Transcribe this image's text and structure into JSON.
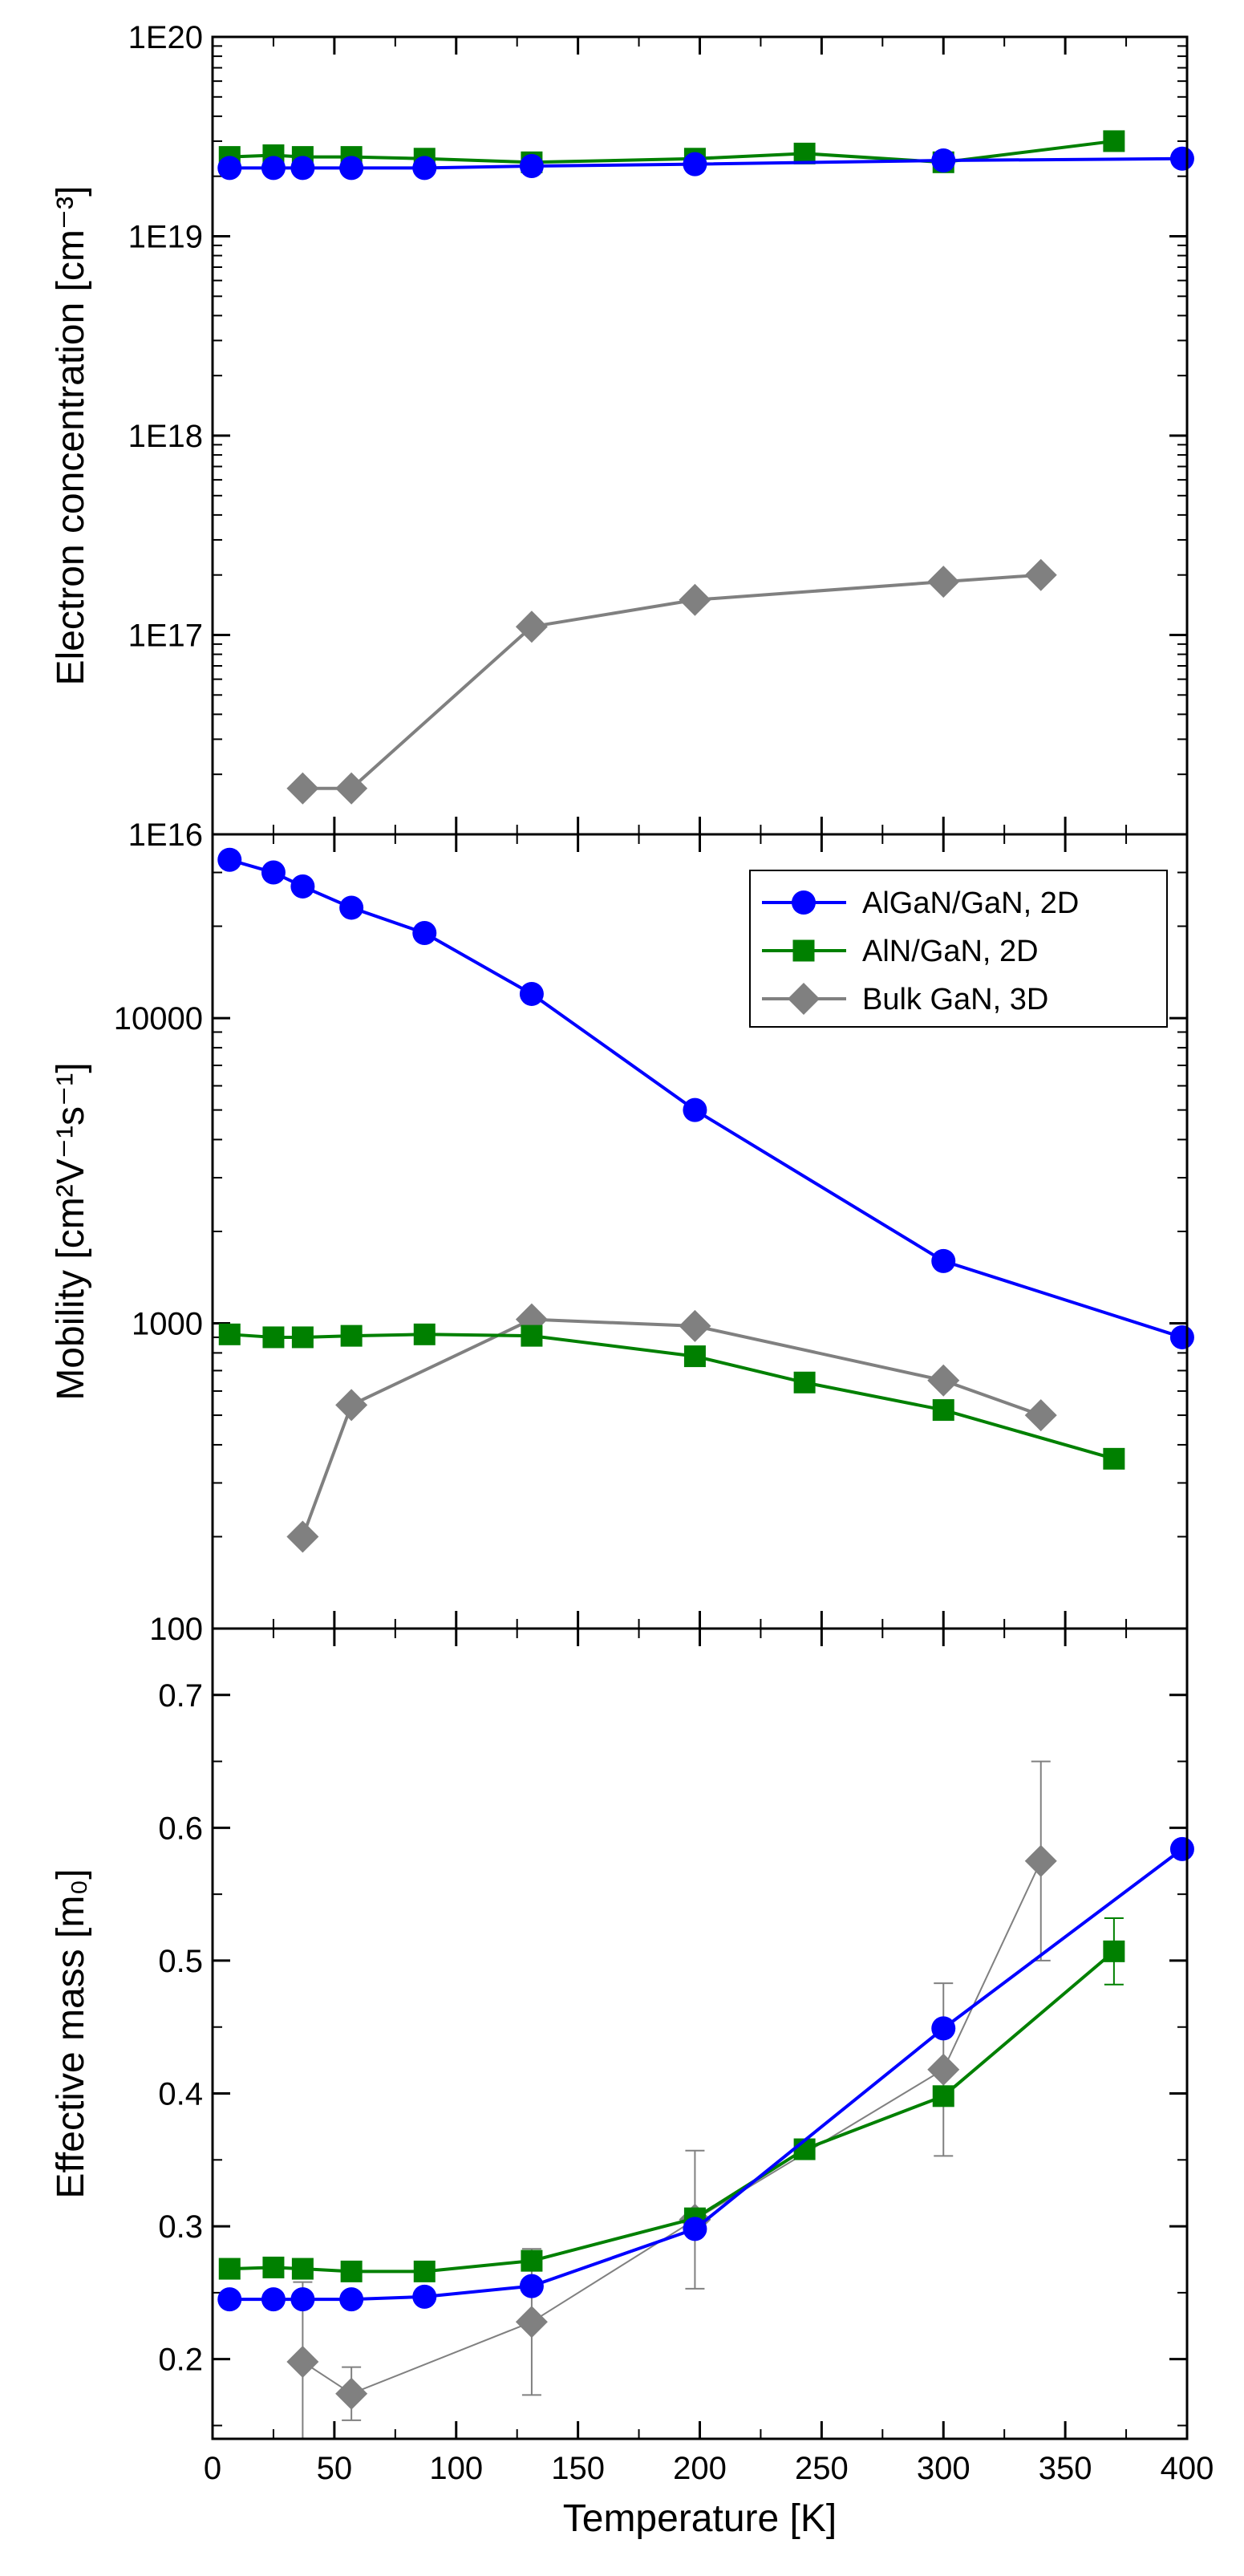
{
  "chart_data": [
    {
      "type": "line",
      "panel": "top",
      "ylabel": "Electron concentration  [cm⁻³]",
      "yscale": "log",
      "ylim": [
        1e+16,
        1e+20
      ],
      "xlim": [
        0,
        400
      ],
      "y_ticks": [
        1e+16,
        1e+17,
        1e+18,
        1e+19,
        1e+20
      ],
      "y_tick_labels": [
        "1E16",
        "1E17",
        "1E18",
        "1E19",
        "1E20"
      ],
      "series": [
        {
          "name": "AlGaN/GaN, 2D",
          "color": "#0000ff",
          "marker": "circle",
          "x": [
            7,
            25,
            37,
            57,
            87,
            131,
            198,
            300,
            398
          ],
          "y": [
            2.2e+19,
            2.2e+19,
            2.2e+19,
            2.2e+19,
            2.2e+19,
            2.25e+19,
            2.3e+19,
            2.4e+19,
            2.45e+19
          ]
        },
        {
          "name": "AlN/GaN, 2D",
          "color": "#008000",
          "marker": "square",
          "x": [
            7,
            25,
            37,
            57,
            87,
            131,
            198,
            243,
            300,
            370
          ],
          "y": [
            2.5e+19,
            2.55e+19,
            2.5e+19,
            2.5e+19,
            2.45e+19,
            2.35e+19,
            2.45e+19,
            2.6e+19,
            2.35e+19,
            3e+19
          ]
        },
        {
          "name": "Bulk GaN, 3D",
          "color": "#808080",
          "marker": "diamond",
          "x": [
            37,
            57,
            131,
            198,
            300,
            340
          ],
          "y": [
            1.7e+16,
            1.7e+16,
            1.1e+17,
            1.5e+17,
            1.85e+17,
            2e+17
          ]
        }
      ]
    },
    {
      "type": "line",
      "panel": "middle",
      "ylabel": "Mobility [cm²V⁻¹s⁻¹]",
      "yscale": "log",
      "ylim": [
        100,
        40000
      ],
      "xlim": [
        0,
        400
      ],
      "y_ticks": [
        100,
        1000,
        10000
      ],
      "y_tick_labels": [
        "100",
        "1000",
        "10000"
      ],
      "legend": {
        "location": "top-right",
        "entries": [
          "AlGaN/GaN, 2D",
          "AlN/GaN, 2D",
          "Bulk GaN, 3D"
        ]
      },
      "series": [
        {
          "name": "AlGaN/GaN, 2D",
          "color": "#0000ff",
          "marker": "circle",
          "x": [
            7,
            25,
            37,
            57,
            87,
            131,
            198,
            300,
            398
          ],
          "y": [
            33000,
            30000,
            27000,
            23000,
            19000,
            12000,
            5000,
            1600,
            900
          ]
        },
        {
          "name": "AlN/GaN, 2D",
          "color": "#008000",
          "marker": "square",
          "x": [
            7,
            25,
            37,
            57,
            87,
            131,
            198,
            243,
            300,
            370
          ],
          "y": [
            920,
            900,
            900,
            910,
            920,
            910,
            780,
            640,
            520,
            360
          ]
        },
        {
          "name": "Bulk GaN, 3D",
          "color": "#808080",
          "marker": "diamond",
          "x": [
            37,
            57,
            131,
            198,
            300,
            340
          ],
          "y": [
            200,
            540,
            1030,
            980,
            650,
            500
          ]
        }
      ]
    },
    {
      "type": "line",
      "panel": "bottom",
      "ylabel": "Effective mass [m₀]",
      "xlabel": "Temperature [K]",
      "yscale": "linear",
      "ylim": [
        0.14,
        0.75
      ],
      "xlim": [
        0,
        400
      ],
      "y_ticks": [
        0.2,
        0.3,
        0.4,
        0.5,
        0.6,
        0.7
      ],
      "y_tick_labels": [
        "0.2",
        "0.3",
        "0.4",
        "0.5",
        "0.6",
        "0.7"
      ],
      "x_ticks": [
        0,
        50,
        100,
        150,
        200,
        250,
        300,
        350,
        400
      ],
      "x_tick_labels": [
        "0",
        "50",
        "100",
        "150",
        "200",
        "250",
        "300",
        "350",
        "400"
      ],
      "series": [
        {
          "name": "AlGaN/GaN, 2D",
          "color": "#0000ff",
          "marker": "circle",
          "x": [
            7,
            25,
            37,
            57,
            87,
            131,
            198,
            300,
            398
          ],
          "y": [
            0.245,
            0.245,
            0.245,
            0.245,
            0.247,
            0.255,
            0.298,
            0.449,
            0.584
          ]
        },
        {
          "name": "AlN/GaN, 2D",
          "color": "#008000",
          "marker": "square",
          "x": [
            7,
            25,
            37,
            57,
            87,
            131,
            198,
            243,
            300,
            370
          ],
          "y": [
            0.268,
            0.269,
            0.268,
            0.266,
            0.266,
            0.274,
            0.306,
            0.358,
            0.398,
            0.507
          ],
          "yerr": [
            0,
            0,
            0,
            0,
            0,
            0,
            0,
            0,
            0,
            0.025
          ]
        },
        {
          "name": "Bulk GaN, 3D",
          "color": "#808080",
          "marker": "diamond",
          "x": [
            37,
            57,
            131,
            198,
            300,
            340
          ],
          "y": [
            0.198,
            0.174,
            0.228,
            0.305,
            0.418,
            0.575
          ],
          "yerr": [
            0.06,
            0.02,
            0.055,
            0.052,
            0.065,
            0.075
          ]
        }
      ]
    }
  ]
}
